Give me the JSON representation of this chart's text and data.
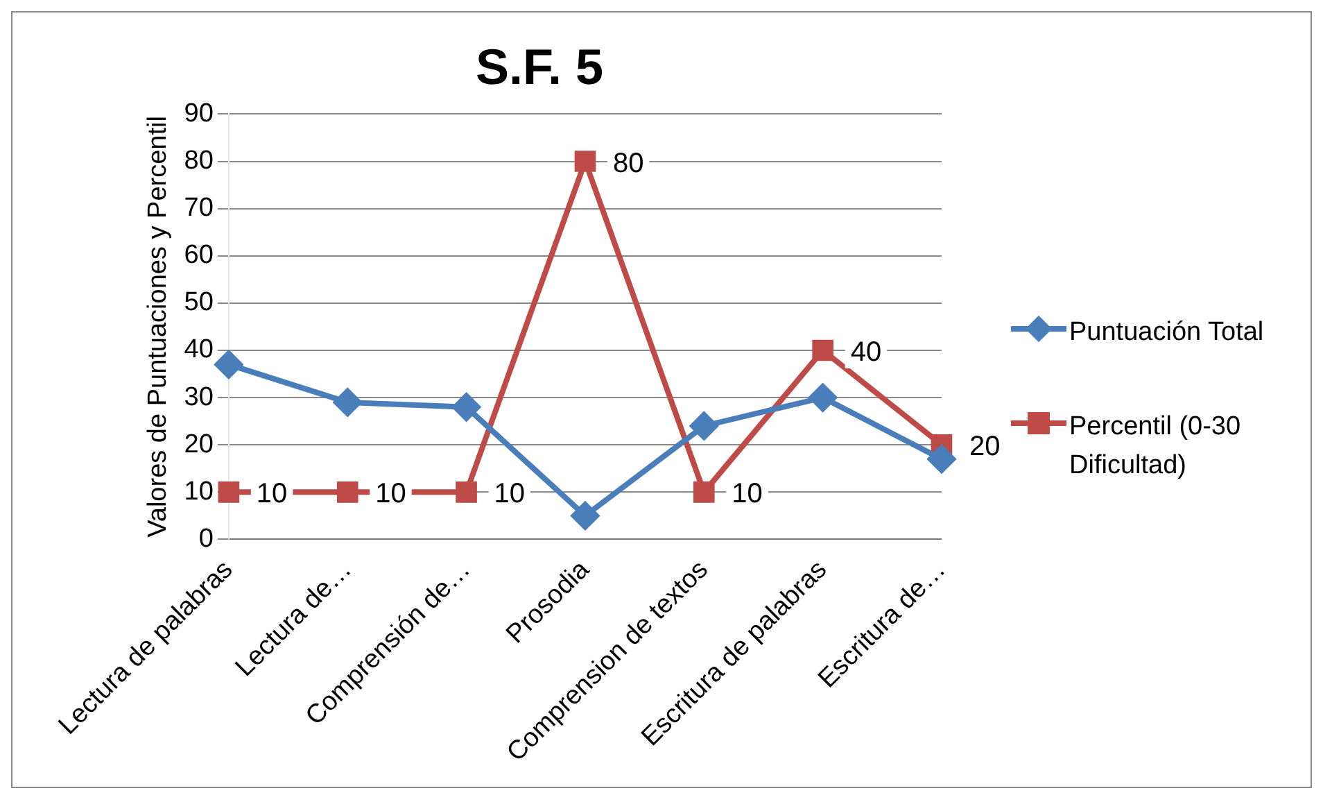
{
  "chart_data": {
    "type": "line",
    "title": "S.F. 5",
    "ylabel": "Valores de Puntuaciones y Percentil",
    "categories": [
      "Lectura de palabras",
      "Lectura de…",
      "Comprensión de…",
      "Prosodia",
      "Comprension de textos",
      "Escritura de palabras",
      "Escritura de…"
    ],
    "series": [
      {
        "name": "Puntuación Total",
        "color": "#4a7ebb",
        "marker": "diamond",
        "values": [
          37,
          29,
          28,
          5,
          24,
          30,
          17
        ]
      },
      {
        "name": "Percentil (0-30 Dificultad)",
        "color": "#be4b48",
        "marker": "square",
        "values": [
          10,
          10,
          10,
          80,
          10,
          40,
          20
        ],
        "value_labels": [
          "10",
          "10",
          "10",
          "80",
          "10",
          "40",
          "20"
        ]
      }
    ],
    "ylim": [
      0,
      90
    ],
    "yticks": [
      0,
      10,
      20,
      30,
      40,
      50,
      60,
      70,
      80,
      90
    ],
    "grid": "y",
    "legend": "right"
  }
}
